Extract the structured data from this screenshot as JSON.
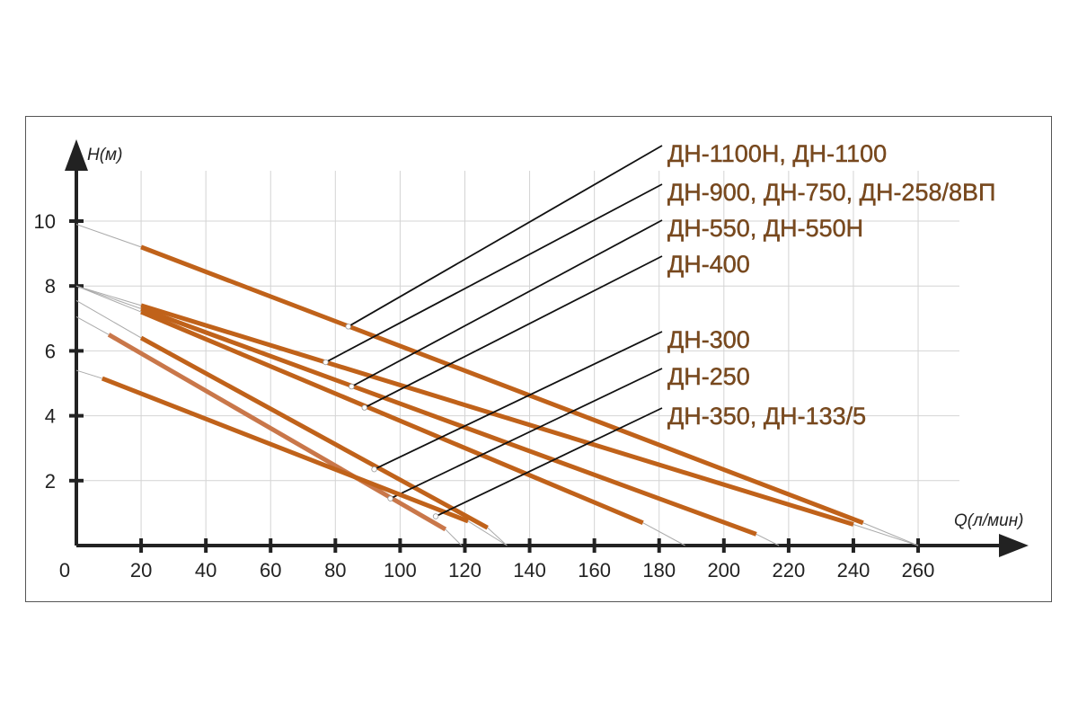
{
  "chart_data": {
    "type": "line",
    "title": "",
    "xlabel": "Q(л/мин)",
    "ylabel": "H(м)",
    "xlim": [
      0,
      270
    ],
    "ylim": [
      0,
      11.5
    ],
    "x_ticks": [
      0,
      20,
      40,
      60,
      80,
      100,
      120,
      140,
      160,
      180,
      200,
      220,
      240,
      260
    ],
    "x_tick_labels": [
      "0",
      "20",
      "40",
      "60",
      "80",
      "100",
      "120",
      "140",
      "160",
      "180",
      "200",
      "220",
      "240",
      "260"
    ],
    "y_ticks": [
      2,
      4,
      6,
      8,
      10
    ],
    "y_tick_labels": [
      "2",
      "4",
      "6",
      "8",
      "10"
    ],
    "grid": true,
    "colors": {
      "curve": "#c0621a",
      "curve_light": "#c9774a",
      "extension": "#aaaaaa",
      "leader": "#111111",
      "label": "#7a4a1e"
    },
    "series": [
      {
        "name": "ДН-1100Н, ДН-1100",
        "extension_start": [
          0,
          9.9
        ],
        "x": [
          20,
          243
        ],
        "y": [
          9.2,
          0.7
        ],
        "extension_end": [
          260,
          0
        ],
        "marker": [
          84,
          6.75
        ]
      },
      {
        "name": "ДН-900, ДН-750, ДН-258/8ВП",
        "extension_start": [
          0,
          8.0
        ],
        "x": [
          20,
          240
        ],
        "y": [
          7.4,
          0.65
        ],
        "extension_end": [
          260,
          0
        ],
        "marker": [
          77,
          5.65
        ]
      },
      {
        "name": "ДН-550, ДН-550Н",
        "extension_start": [
          0,
          8.0
        ],
        "x": [
          20,
          210
        ],
        "y": [
          7.3,
          0.35
        ],
        "extension_end": [
          217,
          0
        ],
        "marker": [
          85,
          4.9
        ]
      },
      {
        "name": "ДН-400",
        "extension_start": [
          0,
          8.0
        ],
        "x": [
          20,
          175
        ],
        "y": [
          7.2,
          0.7
        ],
        "extension_end": [
          188,
          0
        ],
        "marker": [
          89,
          4.25
        ]
      },
      {
        "name": "ДН-300",
        "extension_start": [
          0,
          7.55
        ],
        "x": [
          20,
          127
        ],
        "y": [
          6.4,
          0.55
        ],
        "extension_end": [
          133,
          0
        ],
        "marker": [
          92,
          2.35
        ]
      },
      {
        "name": "ДН-250",
        "extension_start": [
          0,
          7.05
        ],
        "x": [
          10,
          114
        ],
        "y": [
          6.5,
          0.5
        ],
        "extension_end": [
          119,
          0
        ],
        "marker": [
          97,
          1.45
        ],
        "light": true
      },
      {
        "name": "ДН-350, ДН-133/5",
        "extension_start": [
          0,
          5.4
        ],
        "x": [
          8,
          121
        ],
        "y": [
          5.15,
          0.75
        ],
        "extension_end": [
          133,
          0
        ],
        "marker": [
          111,
          0.9
        ]
      }
    ],
    "legend_placement": "top-right (leader lines)"
  }
}
